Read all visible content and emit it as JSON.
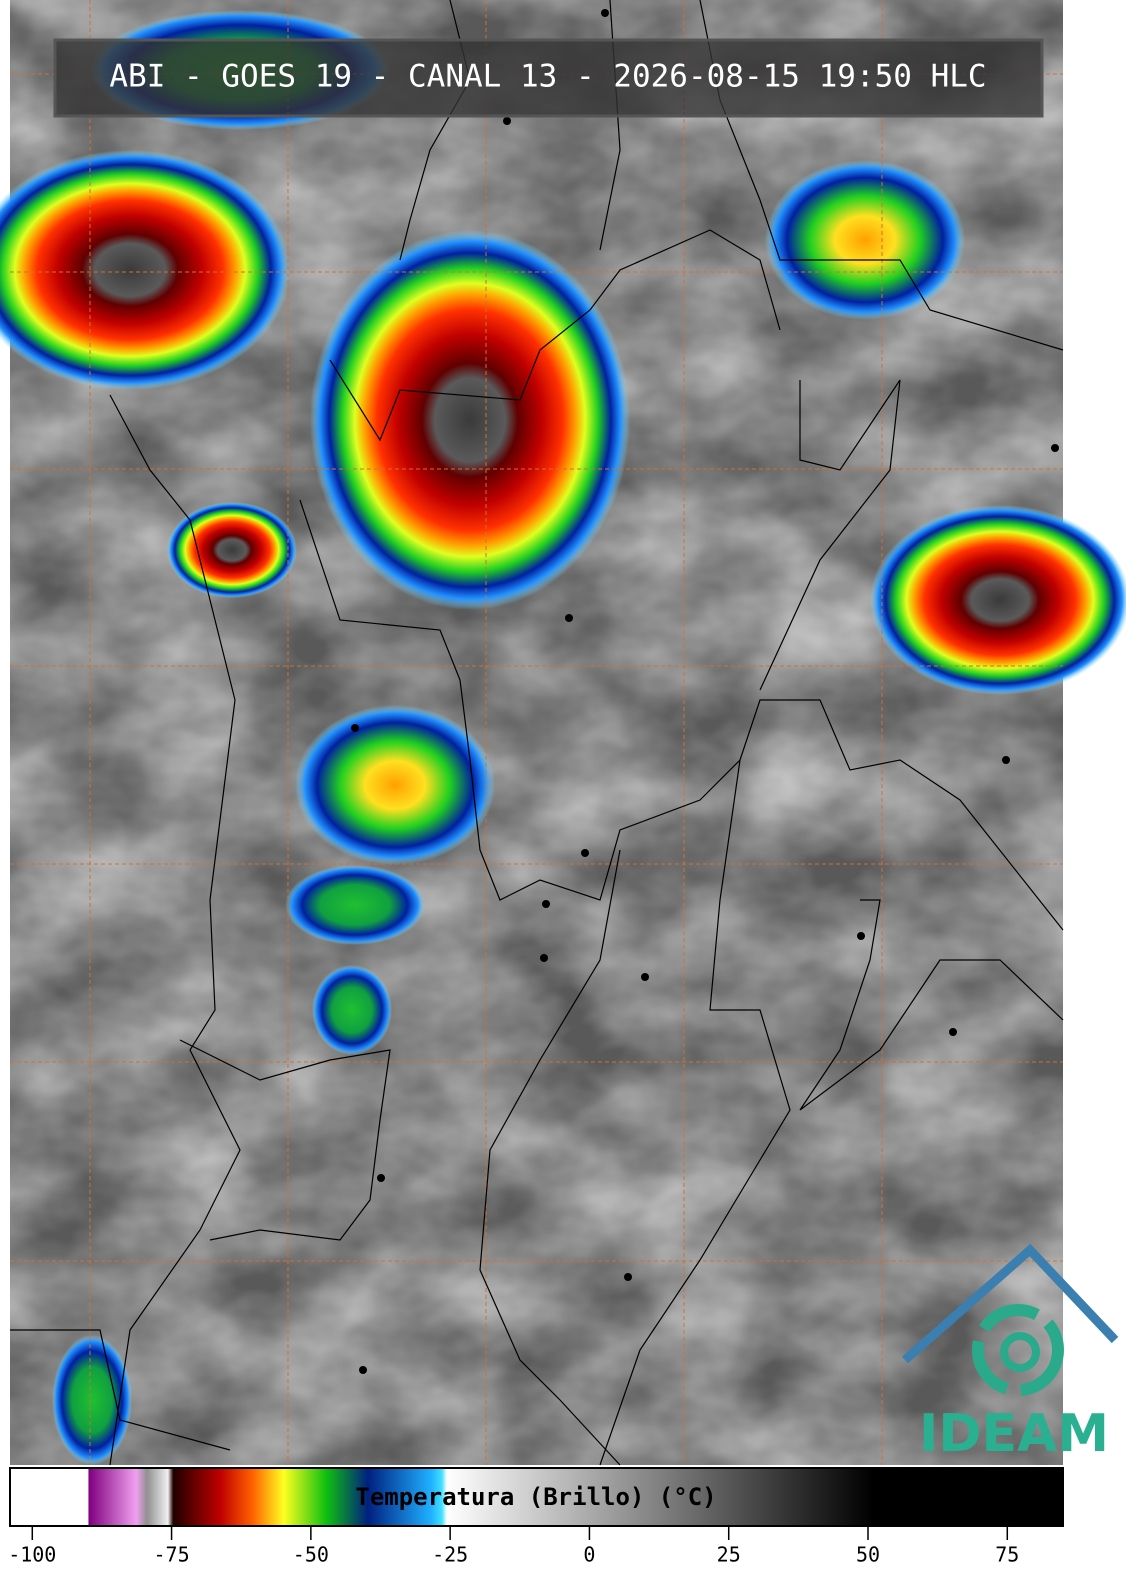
{
  "header": {
    "title": "ABI - GOES 19 - CANAL 13 - 2026-08-15 19:50 HLC"
  },
  "colorbar": {
    "label": "Temperatura (Brillo) (°C)",
    "xlim": [
      -104,
      85
    ],
    "xticks": [
      -100,
      -75,
      -50,
      -25,
      0,
      25,
      50,
      75
    ]
  },
  "logo": {
    "text": "IDEAM"
  }
}
